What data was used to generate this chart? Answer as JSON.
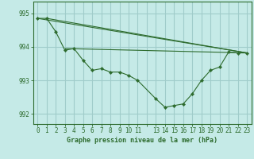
{
  "title": "Graphe pression niveau de la mer (hPa)",
  "bg_color": "#c5eae7",
  "grid_color": "#a0ccca",
  "line_color": "#2d6b2d",
  "ylim": [
    991.7,
    995.35
  ],
  "yticks": [
    992,
    993,
    994,
    995
  ],
  "xlim": [
    -0.5,
    23.5
  ],
  "straight_lines": [
    {
      "x": [
        0,
        23
      ],
      "y": [
        994.85,
        993.82
      ]
    },
    {
      "x": [
        1,
        23
      ],
      "y": [
        994.85,
        993.82
      ]
    },
    {
      "x": [
        3,
        23
      ],
      "y": [
        993.95,
        993.82
      ]
    }
  ],
  "main_x": [
    0,
    1,
    2,
    3,
    4,
    5,
    6,
    7,
    8,
    9,
    10,
    11,
    13,
    14,
    15,
    16,
    17,
    18,
    19,
    20,
    21,
    22,
    23
  ],
  "main_y": [
    994.85,
    994.85,
    994.45,
    993.9,
    993.95,
    993.6,
    993.3,
    993.35,
    993.25,
    993.25,
    993.15,
    993.0,
    992.45,
    992.2,
    992.25,
    992.3,
    992.6,
    993.0,
    993.3,
    993.4,
    993.85,
    993.82,
    993.82
  ],
  "xlabel_fontsize": 6.0,
  "tick_fontsize": 5.5
}
